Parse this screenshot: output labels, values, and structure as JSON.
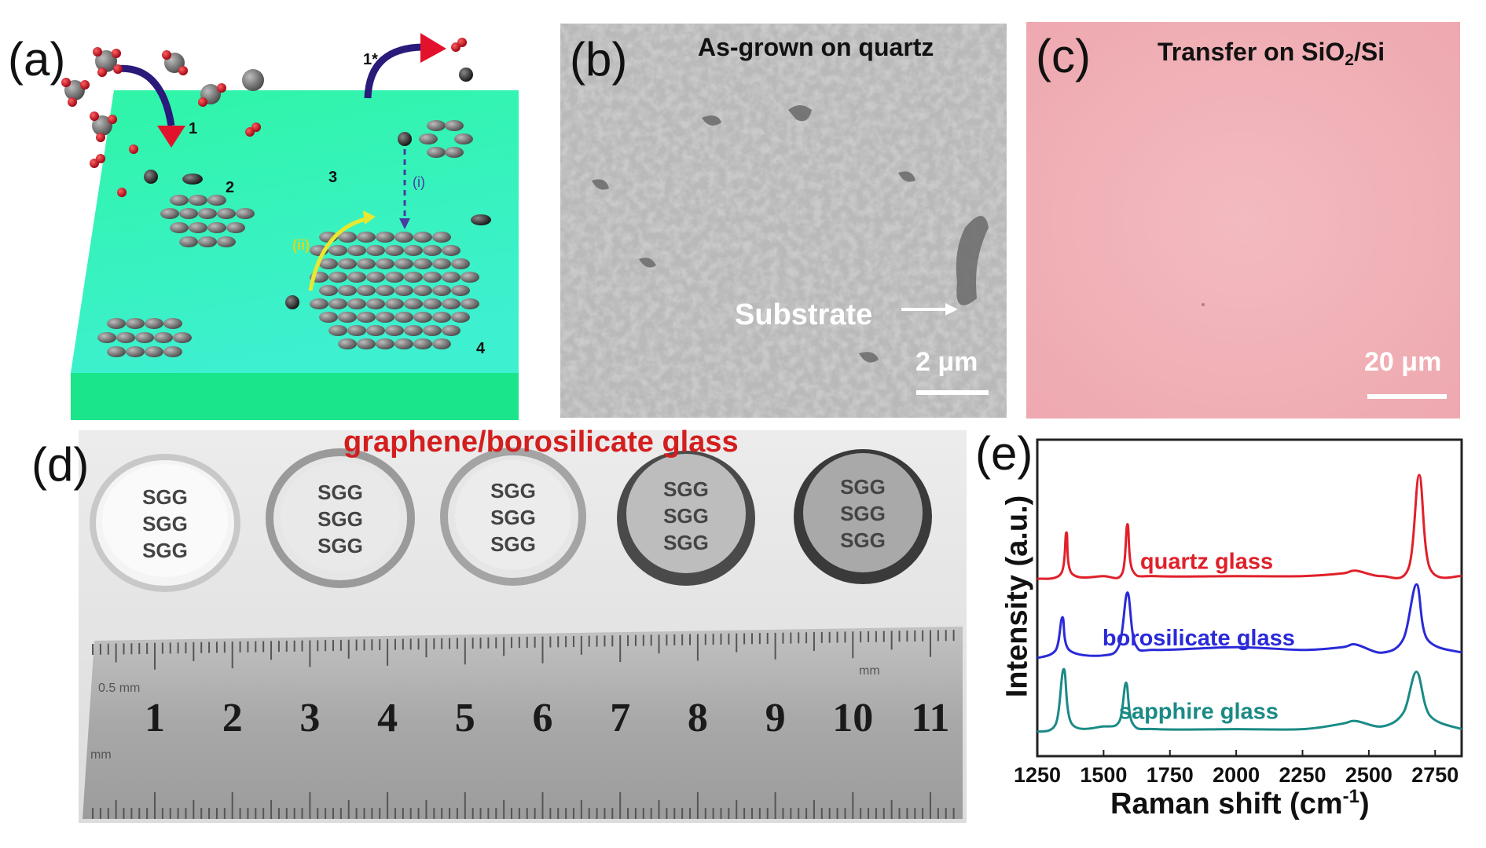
{
  "panels": {
    "a": {
      "label": "(a)",
      "steps": [
        "1",
        "1*",
        "2",
        "3",
        "4"
      ],
      "paths": [
        "(i)",
        "(ii)"
      ],
      "colors": {
        "substrate_top": "#2ff5a6",
        "substrate_bottom": "#1be58b",
        "arrow": "#2a1a7a",
        "arrowhead": "#e2122c",
        "atom": "#7a7a7a"
      }
    },
    "b": {
      "label": "(b)",
      "title": "As-grown on quartz",
      "annotation": "Substrate",
      "scalebar": "2 μm"
    },
    "c": {
      "label": "(c)",
      "title_main": "Transfer on SiO",
      "title_sub": "2",
      "title_tail": "/Si",
      "scalebar": "20 μm",
      "colors": {
        "background": "#f2b4b8"
      }
    },
    "d": {
      "label": "(d)",
      "title": "graphene/borosilicate glass",
      "disc_text": "SGG",
      "ruler_numbers": [
        "1",
        "2",
        "3",
        "4",
        "5",
        "6",
        "7",
        "8",
        "9",
        "10",
        "11"
      ],
      "ruler_small_left": "0.5 mm",
      "ruler_small_right": "mm",
      "ruler_small_bottom": "mm",
      "colors": {
        "title": "#d41e1e"
      }
    },
    "e": {
      "label": "(e)"
    }
  },
  "chart_data": {
    "type": "line",
    "xlabel_main": "Raman shift (cm",
    "xlabel_sup": "-1",
    "xlabel_tail": ")",
    "ylabel": "Intensity (a.u.)",
    "xlim": [
      1250,
      2850
    ],
    "xticks": [
      "1250",
      "1500",
      "1750",
      "2000",
      "2250",
      "2500",
      "2750"
    ],
    "series": [
      {
        "name": "quartz glass",
        "color": "#e0202a",
        "x": [
          1250,
          1340,
          1360,
          1380,
          1500,
          1570,
          1590,
          1610,
          1700,
          2000,
          2250,
          2400,
          2450,
          2550,
          2650,
          2690,
          2730,
          2850
        ],
        "y": [
          0.62,
          0.64,
          0.79,
          0.64,
          0.63,
          0.64,
          0.82,
          0.65,
          0.63,
          0.63,
          0.63,
          0.64,
          0.65,
          0.63,
          0.66,
          1.0,
          0.66,
          0.63
        ]
      },
      {
        "name": "borosilicate glass",
        "color": "#2a2ad8",
        "x": [
          1250,
          1320,
          1345,
          1370,
          1500,
          1560,
          1590,
          1620,
          1700,
          2000,
          2250,
          2400,
          2450,
          2550,
          2630,
          2680,
          2720,
          2850
        ],
        "y": [
          0.33,
          0.36,
          0.48,
          0.36,
          0.34,
          0.38,
          0.57,
          0.38,
          0.36,
          0.37,
          0.36,
          0.37,
          0.38,
          0.35,
          0.4,
          0.6,
          0.4,
          0.35
        ]
      },
      {
        "name": "sapphire glass",
        "color": "#1a8a86",
        "x": [
          1250,
          1320,
          1350,
          1380,
          1500,
          1560,
          1585,
          1610,
          1700,
          2000,
          2250,
          2400,
          2450,
          2550,
          2630,
          2680,
          2730,
          2850
        ],
        "y": [
          0.06,
          0.09,
          0.29,
          0.09,
          0.08,
          0.1,
          0.24,
          0.09,
          0.07,
          0.07,
          0.07,
          0.09,
          0.1,
          0.08,
          0.13,
          0.28,
          0.12,
          0.07
        ]
      }
    ]
  }
}
